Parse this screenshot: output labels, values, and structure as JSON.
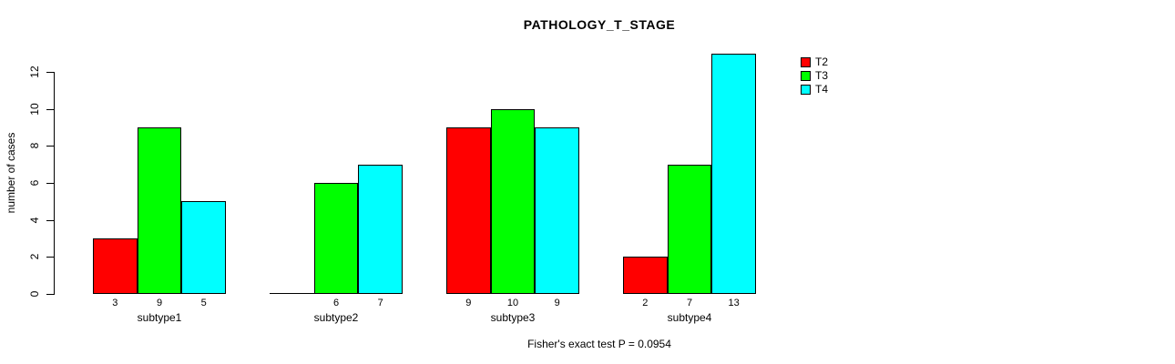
{
  "chart_data": {
    "type": "bar",
    "title": "PATHOLOGY_T_STAGE",
    "xlabel": "",
    "ylabel": "number of cases",
    "footer": "Fisher's exact test P = 0.0954",
    "categories": [
      "subtype1",
      "subtype2",
      "subtype3",
      "subtype4"
    ],
    "series": [
      {
        "name": "T2",
        "color": "#ff0000",
        "values": [
          3,
          0,
          9,
          2
        ]
      },
      {
        "name": "T3",
        "color": "#00ff00",
        "values": [
          9,
          6,
          10,
          7
        ]
      },
      {
        "name": "T4",
        "color": "#00ffff",
        "values": [
          5,
          7,
          9,
          13
        ]
      }
    ],
    "yticks": [
      0,
      2,
      4,
      6,
      8,
      10,
      12
    ],
    "ylim": [
      0,
      12
    ],
    "grid": false,
    "legend_position": "right-outside-top",
    "bar_value_labels_shown": true,
    "zero_value_labels_hidden": true,
    "bar_border_color": "#000000",
    "background_color": "#ffffff",
    "text_color": "#000000"
  }
}
